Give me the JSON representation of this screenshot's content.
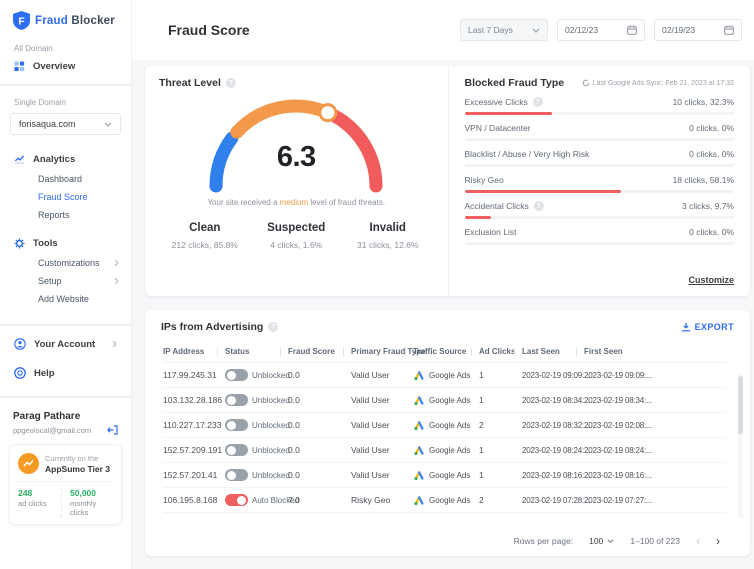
{
  "app": {
    "brand_word1": "Fraud",
    "brand_word2": "Blocker"
  },
  "colors": {
    "accent_blue": "#2e6bf0",
    "bar_red": "#f05f5f",
    "gauge_blue": "#2f80ed",
    "gauge_orange": "#f2994a",
    "gauge_red": "#f25b5b",
    "success_green": "#27ae60",
    "plan_orange": "#f59a23"
  },
  "sidebar": {
    "all_domain_label": "All Domain",
    "overview_label": "Overview",
    "single_domain_label": "Single Domain",
    "domain_selected": "forisaqua.com",
    "analytics_label": "Analytics",
    "analytics_items": [
      "Dashboard",
      "Fraud Score",
      "Reports"
    ],
    "tools_label": "Tools",
    "tools_items": [
      "Customizations",
      "Setup",
      "Add Website"
    ],
    "your_account_label": "Your Account",
    "help_label": "Help",
    "user": {
      "name": "Parag Pathare",
      "email": "ppgeolocal@gmail.com"
    },
    "plan": {
      "line1": "Currently on the",
      "line2": "AppSumo Tier 3",
      "stat1_value": "248",
      "stat1_label": "ad clicks",
      "stat2_value": "50,000",
      "stat2_label": "monthly clicks"
    }
  },
  "header": {
    "title": "Fraud Score",
    "range_selected": "Last 7 Days",
    "date_from": "02/12/23",
    "date_to": "02/19/23"
  },
  "threat": {
    "title": "Threat Level",
    "score": "6.3",
    "caption_pre": "Your site received a ",
    "caption_em": "medium",
    "caption_post": " level of fraud threats.",
    "stats": [
      {
        "label": "Clean",
        "value": "212 clicks, 85.8%"
      },
      {
        "label": "Suspected",
        "value": "4 clicks, 1.6%"
      },
      {
        "label": "Invalid",
        "value": "31 clicks, 12.6%"
      }
    ]
  },
  "chart_data": {
    "type": "gauge",
    "title": "Threat Level",
    "value": 6.3,
    "range": [
      0,
      10
    ],
    "segments": [
      {
        "color": "#2f80ed",
        "from_pct": 0,
        "to_pct": 21
      },
      {
        "color": "#f2994a",
        "from_pct": 23,
        "to_pct": 62
      },
      {
        "color": "#f25b5b",
        "from_pct": 65,
        "to_pct": 100
      }
    ],
    "marker_pct": 63
  },
  "blocked": {
    "title": "Blocked Fraud Type",
    "sync_text": "Last Google Ads Sync: Feb 21, 2023 at 17:32",
    "customize_label": "Customize",
    "items": [
      {
        "label": "Excessive Clicks",
        "help_class": "show",
        "value": "10 clicks, 32.3%",
        "pct": 32.3
      },
      {
        "label": "VPN / Datacenter",
        "help_class": "hide",
        "value": "0 clicks, 0%",
        "pct": 0
      },
      {
        "label": "Blacklist / Abuse / Very High Risk",
        "help_class": "hide",
        "value": "0 clicks, 0%",
        "pct": 0
      },
      {
        "label": "Risky Geo",
        "help_class": "hide",
        "value": "18 clicks, 58.1%",
        "pct": 58.1
      },
      {
        "label": "Accidental Clicks",
        "help_class": "show",
        "value": "3 clicks, 9.7%",
        "pct": 9.7
      },
      {
        "label": "Exclusion List",
        "help_class": "hide",
        "value": "0 clicks, 0%",
        "pct": 0
      }
    ]
  },
  "ips": {
    "title": "IPs from Advertising",
    "export_label": "EXPORT",
    "columns": [
      "IP Address",
      "Status",
      "Fraud Score",
      "Primary Fraud Type",
      "Traffic Source",
      "Ad Clicks",
      "Last Seen",
      "First Seen"
    ],
    "rows": [
      {
        "ip": "117.99.245.31",
        "status": "Unblocked",
        "toggle": "off",
        "score": "0.0",
        "type": "Valid User",
        "source": "Google Ads",
        "clicks": "1",
        "last": "2023-02-19 09:09:...",
        "first": "2023-02-19 09:09:..."
      },
      {
        "ip": "103.132.28.186",
        "status": "Unblocked",
        "toggle": "off",
        "score": "0.0",
        "type": "Valid User",
        "source": "Google Ads",
        "clicks": "1",
        "last": "2023-02-19 08:34:...",
        "first": "2023-02-19 08:34:..."
      },
      {
        "ip": "110.227.17.233",
        "status": "Unblocked",
        "toggle": "off",
        "score": "0.0",
        "type": "Valid User",
        "source": "Google Ads",
        "clicks": "2",
        "last": "2023-02-19 08:32:...",
        "first": "2023-02-19 02:08:..."
      },
      {
        "ip": "152.57.209.191",
        "status": "Unblocked",
        "toggle": "off",
        "score": "0.0",
        "type": "Valid User",
        "source": "Google Ads",
        "clicks": "1",
        "last": "2023-02-19 08:24:...",
        "first": "2023-02-19 08:24:..."
      },
      {
        "ip": "152.57.201.41",
        "status": "Unblocked",
        "toggle": "off",
        "score": "0.0",
        "type": "Valid User",
        "source": "Google Ads",
        "clicks": "1",
        "last": "2023-02-19 08:16:...",
        "first": "2023-02-19 08:16:..."
      },
      {
        "ip": "106.195.8.168",
        "status": "Auto Blocked",
        "toggle": "on",
        "score": "7.0",
        "type": "Risky Geo",
        "source": "Google Ads",
        "clicks": "2",
        "last": "2023-02-19 07:28:...",
        "first": "2023-02-19 07:27:..."
      }
    ],
    "pagination": {
      "rows_per_page_label": "Rows per page:",
      "rows_per_page": "100",
      "range": "1–100 of 223"
    }
  }
}
